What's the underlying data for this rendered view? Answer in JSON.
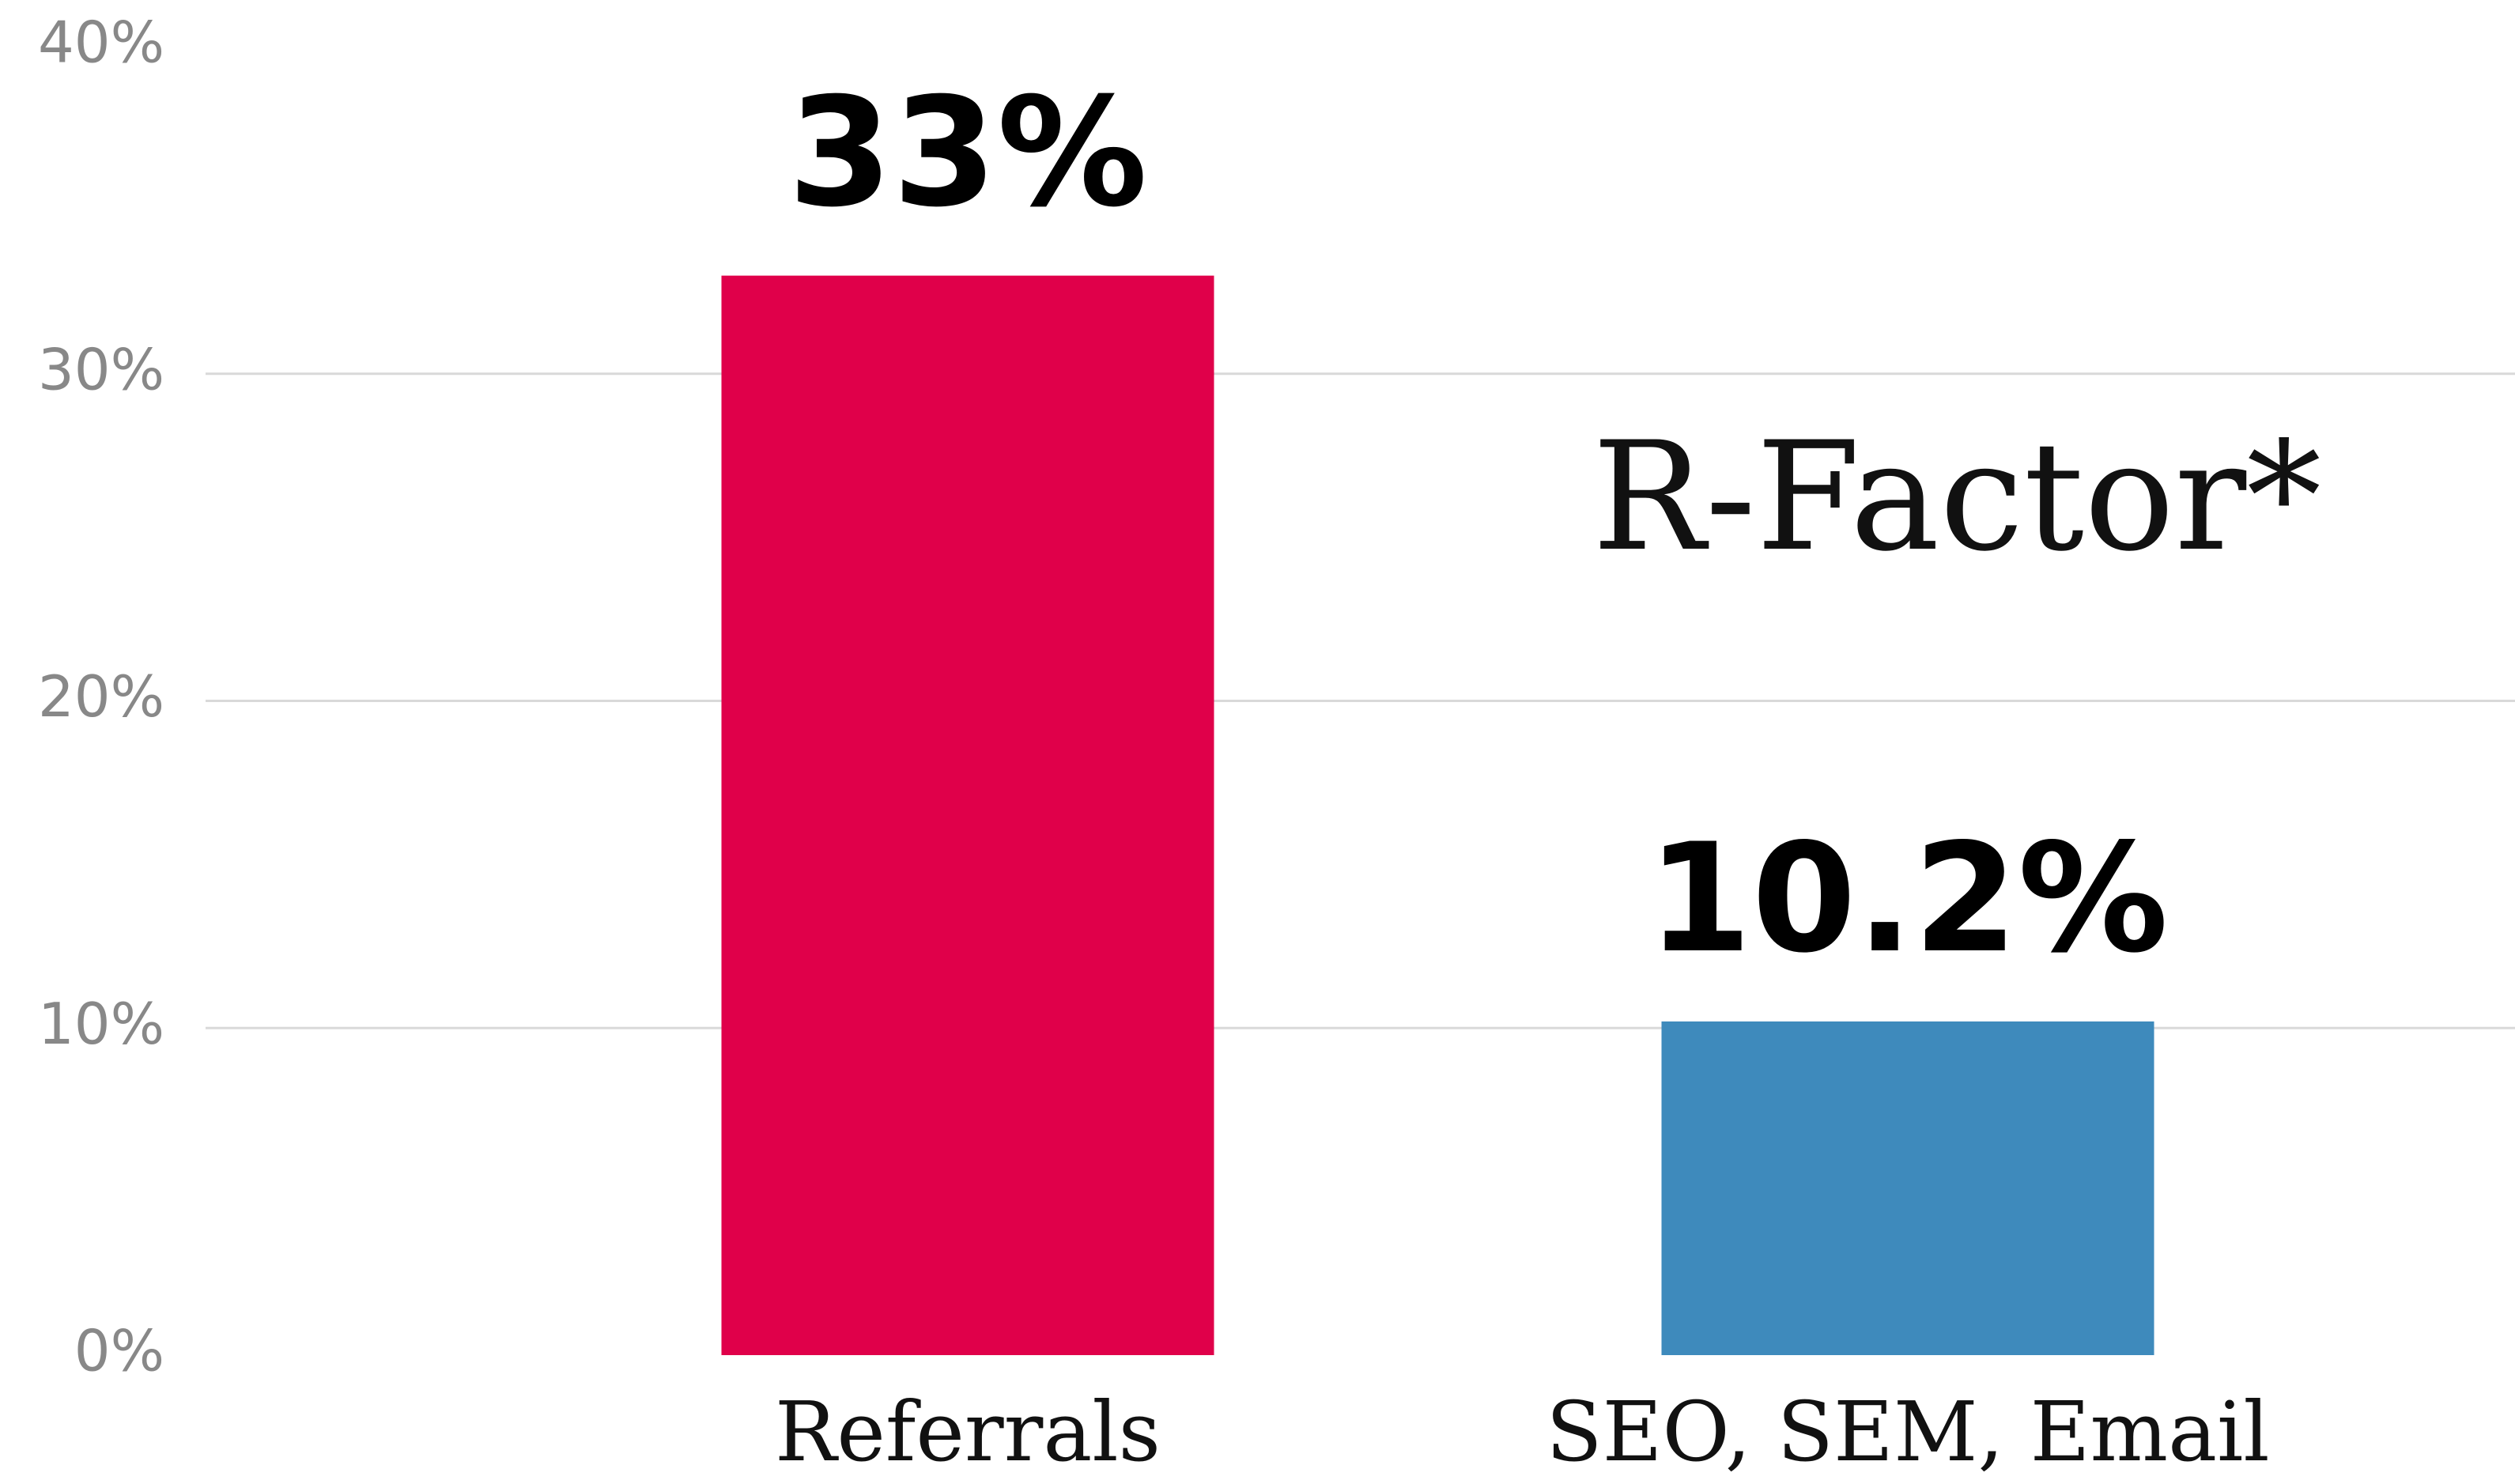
{
  "chart_data": {
    "type": "bar",
    "categories": [
      "Referrals",
      "SEO, SEM, Email"
    ],
    "values": [
      33,
      10.2
    ],
    "value_labels": [
      "33%",
      "10.2%"
    ],
    "colors": [
      "#e0004a",
      "#3e8abc"
    ],
    "annotation": "R-Factor*",
    "ylim": [
      0,
      40
    ],
    "yticks": [
      {
        "value": 0,
        "label": "0%"
      },
      {
        "value": 10,
        "label": "10%"
      },
      {
        "value": 20,
        "label": "20%"
      },
      {
        "value": 30,
        "label": "30%"
      },
      {
        "value": 40,
        "label": "40%"
      }
    ],
    "grid": true
  }
}
